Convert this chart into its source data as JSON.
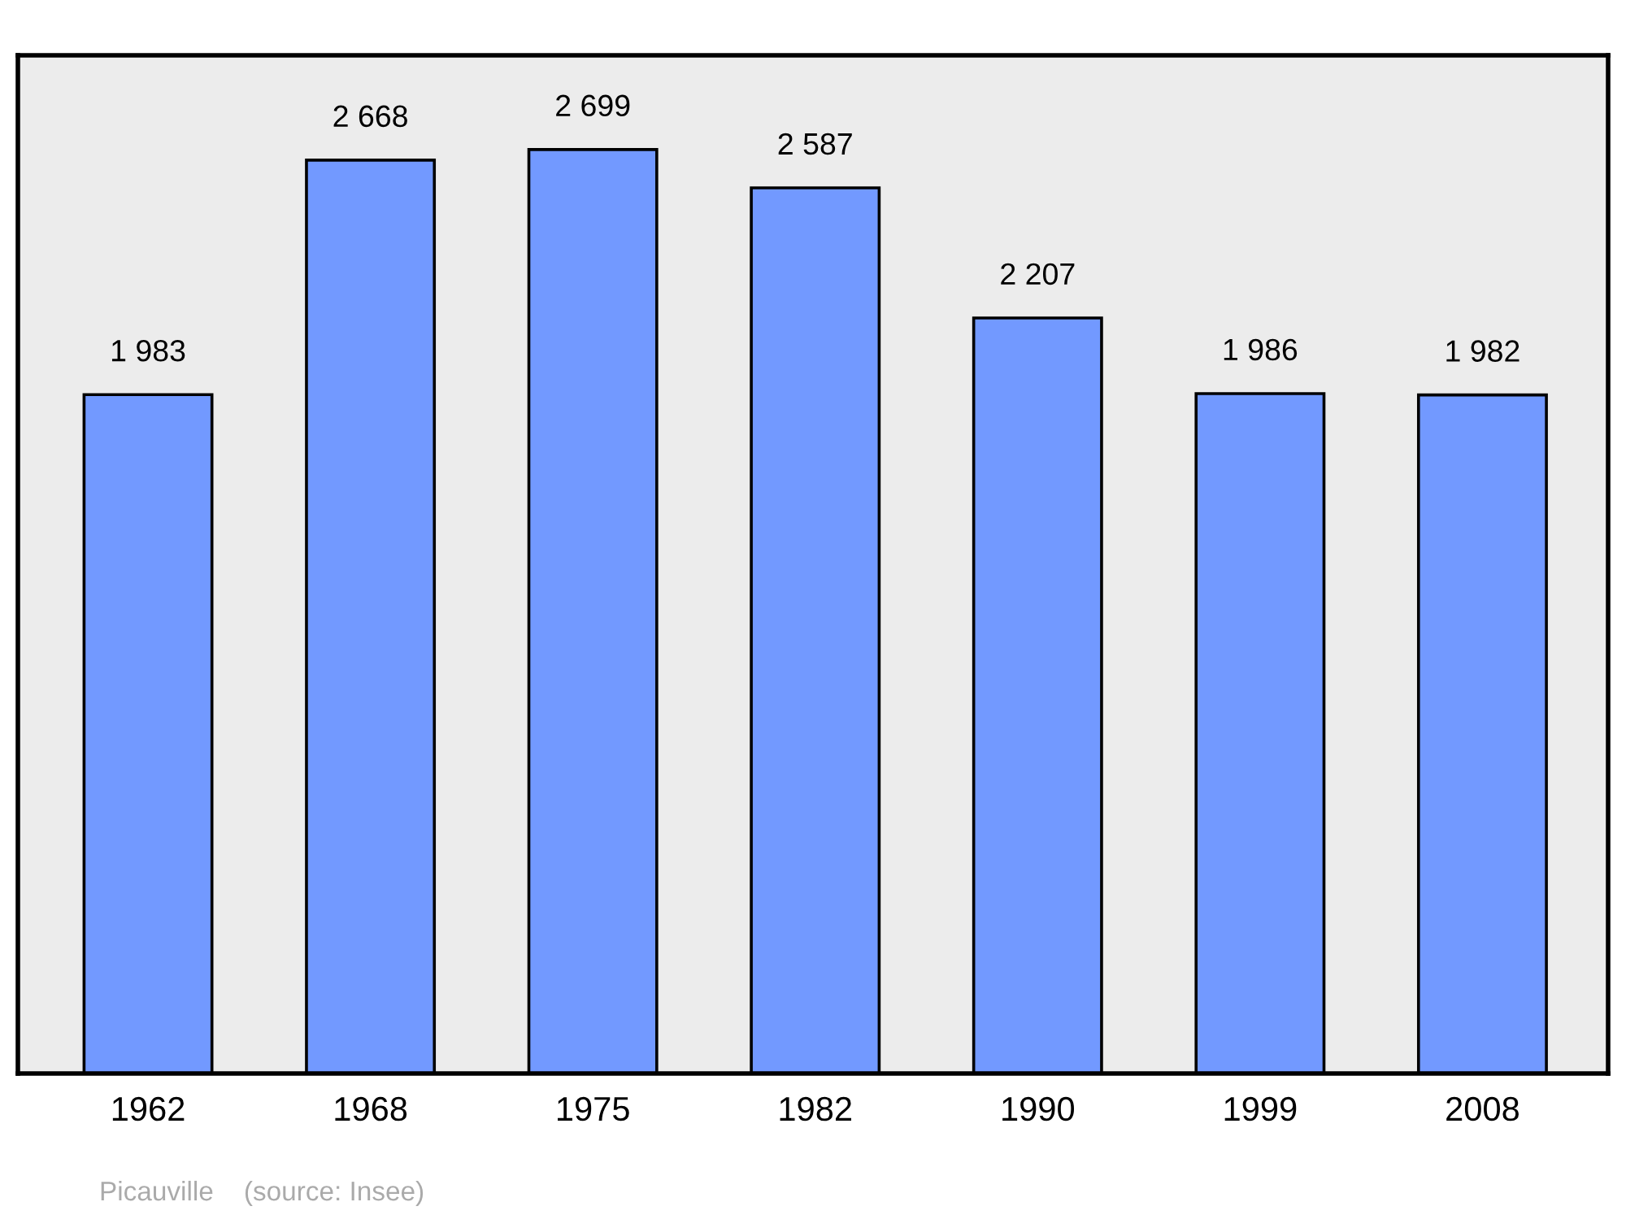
{
  "chart_data": {
    "type": "bar",
    "categories": [
      "1962",
      "1968",
      "1975",
      "1982",
      "1990",
      "1999",
      "2008"
    ],
    "values": [
      1983,
      2668,
      2699,
      2587,
      2207,
      1986,
      1982
    ],
    "value_labels": [
      "1 983",
      "2 668",
      "2 699",
      "2 587",
      "2 207",
      "1 986",
      "1 982"
    ],
    "color": "#7299ff",
    "grid": false,
    "legend": false,
    "annotations": [
      "Picauville    (source: Insee)"
    ]
  }
}
